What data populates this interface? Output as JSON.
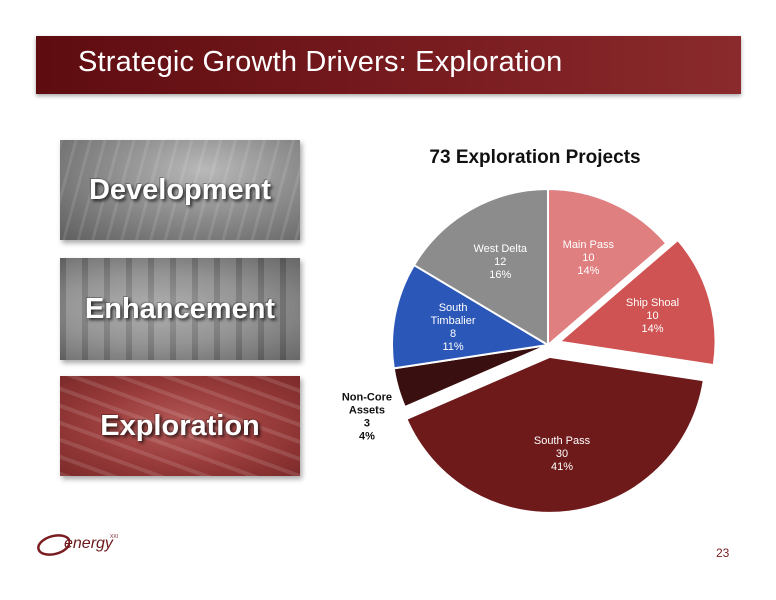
{
  "slide": {
    "title": "Strategic Growth Drivers: Exploration",
    "page_number": "23"
  },
  "tiles": [
    {
      "label": "Development"
    },
    {
      "label": "Enhancement"
    },
    {
      "label": "Exploration"
    }
  ],
  "logo": {
    "wordmark": "energy",
    "superscript": "XXI"
  },
  "colors": {
    "title_bar": "#6e1519",
    "accent": "#7a1d21"
  },
  "chart_data": {
    "type": "pie",
    "title": "73 Exploration Projects",
    "total": 73,
    "slices": [
      {
        "name": "Main Pass",
        "value": 10,
        "percent": "14%",
        "color": "#e07f80",
        "label_color": "#ffffff",
        "exploded": false
      },
      {
        "name": "Ship Shoal",
        "value": 10,
        "percent": "14%",
        "color": "#cf5352",
        "label_color": "#ffffff",
        "exploded": true
      },
      {
        "name": "South Pass",
        "value": 30,
        "percent": "41%",
        "color": "#6e1a1b",
        "label_color": "#ffffff",
        "exploded": true
      },
      {
        "name": "Non-Core Assets",
        "value": 3,
        "percent": "4%",
        "color": "#3a0f0f",
        "label_color": "#111111",
        "exploded": false,
        "label_outside": true
      },
      {
        "name": "South Timbalier",
        "value": 8,
        "percent": "11%",
        "color": "#2b57b8",
        "label_color": "#ffffff",
        "exploded": false
      },
      {
        "name": "West Delta",
        "value": 12,
        "percent": "16%",
        "color": "#8c8c8c",
        "label_color": "#ffffff",
        "exploded": false
      }
    ]
  }
}
